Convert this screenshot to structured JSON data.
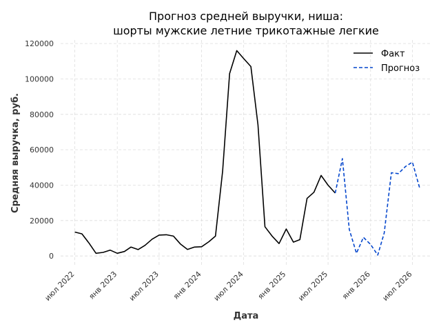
{
  "chart_data": {
    "type": "line",
    "title": "Прогноз средней выручки, ниша:",
    "subtitle": "шорты мужские летние трикотажные легкие",
    "xlabel": "Дата",
    "ylabel": "Средняя выручка, руб.",
    "ylim": [
      -5000,
      122000
    ],
    "y_ticks": [
      0,
      20000,
      40000,
      60000,
      80000,
      100000,
      120000
    ],
    "x_range": [
      "2022-05-01",
      "2026-09-15"
    ],
    "x_ticks": [
      {
        "date": "2022-07-01",
        "label": "июл 2022"
      },
      {
        "date": "2023-01-01",
        "label": "янв 2023"
      },
      {
        "date": "2023-07-01",
        "label": "июл 2023"
      },
      {
        "date": "2024-01-01",
        "label": "янв 2024"
      },
      {
        "date": "2024-07-01",
        "label": "июл 2024"
      },
      {
        "date": "2025-01-01",
        "label": "янв 2025"
      },
      {
        "date": "2025-07-01",
        "label": "июл 2025"
      },
      {
        "date": "2026-01-01",
        "label": "янв 2026"
      },
      {
        "date": "2026-07-01",
        "label": "июл 2026"
      }
    ],
    "grid": true,
    "legend_position": "top-right",
    "series": [
      {
        "name": "Факт",
        "color": "#000000",
        "style": "solid",
        "points": [
          [
            "2022-07-01",
            13500
          ],
          [
            "2022-08-01",
            12500
          ],
          [
            "2022-09-01",
            7200
          ],
          [
            "2022-10-01",
            1500
          ],
          [
            "2022-11-01",
            2000
          ],
          [
            "2022-12-01",
            3300
          ],
          [
            "2023-01-01",
            1500
          ],
          [
            "2023-02-01",
            2500
          ],
          [
            "2023-03-01",
            5000
          ],
          [
            "2023-04-01",
            3600
          ],
          [
            "2023-05-01",
            6000
          ],
          [
            "2023-06-01",
            9500
          ],
          [
            "2023-07-01",
            11800
          ],
          [
            "2023-08-01",
            12000
          ],
          [
            "2023-09-01",
            11200
          ],
          [
            "2023-10-01",
            6800
          ],
          [
            "2023-11-01",
            3700
          ],
          [
            "2023-12-01",
            5000
          ],
          [
            "2024-01-01",
            5200
          ],
          [
            "2024-02-01",
            8000
          ],
          [
            "2024-03-01",
            11200
          ],
          [
            "2024-04-01",
            48000
          ],
          [
            "2024-05-01",
            103000
          ],
          [
            "2024-06-01",
            116000
          ],
          [
            "2024-07-01",
            111500
          ],
          [
            "2024-08-01",
            107000
          ],
          [
            "2024-09-01",
            74000
          ],
          [
            "2024-10-01",
            16500
          ],
          [
            "2024-11-01",
            11200
          ],
          [
            "2024-12-01",
            7000
          ],
          [
            "2025-01-01",
            15200
          ],
          [
            "2025-02-01",
            7800
          ],
          [
            "2025-03-01",
            9200
          ],
          [
            "2025-04-01",
            32500
          ],
          [
            "2025-05-01",
            36000
          ],
          [
            "2025-06-01",
            45500
          ],
          [
            "2025-07-01",
            40000
          ],
          [
            "2025-08-01",
            35500
          ]
        ]
      },
      {
        "name": "Прогноз",
        "color": "#0044cc",
        "style": "dashed",
        "points": [
          [
            "2025-08-01",
            35500
          ],
          [
            "2025-09-01",
            55000
          ],
          [
            "2025-10-01",
            15000
          ],
          [
            "2025-11-01",
            1500
          ],
          [
            "2025-12-01",
            10500
          ],
          [
            "2026-01-01",
            6500
          ],
          [
            "2026-02-01",
            500
          ],
          [
            "2026-03-01",
            13000
          ],
          [
            "2026-04-01",
            47000
          ],
          [
            "2026-05-01",
            46500
          ],
          [
            "2026-06-01",
            50500
          ],
          [
            "2026-07-01",
            53000
          ],
          [
            "2026-08-01",
            38500
          ]
        ]
      }
    ]
  }
}
